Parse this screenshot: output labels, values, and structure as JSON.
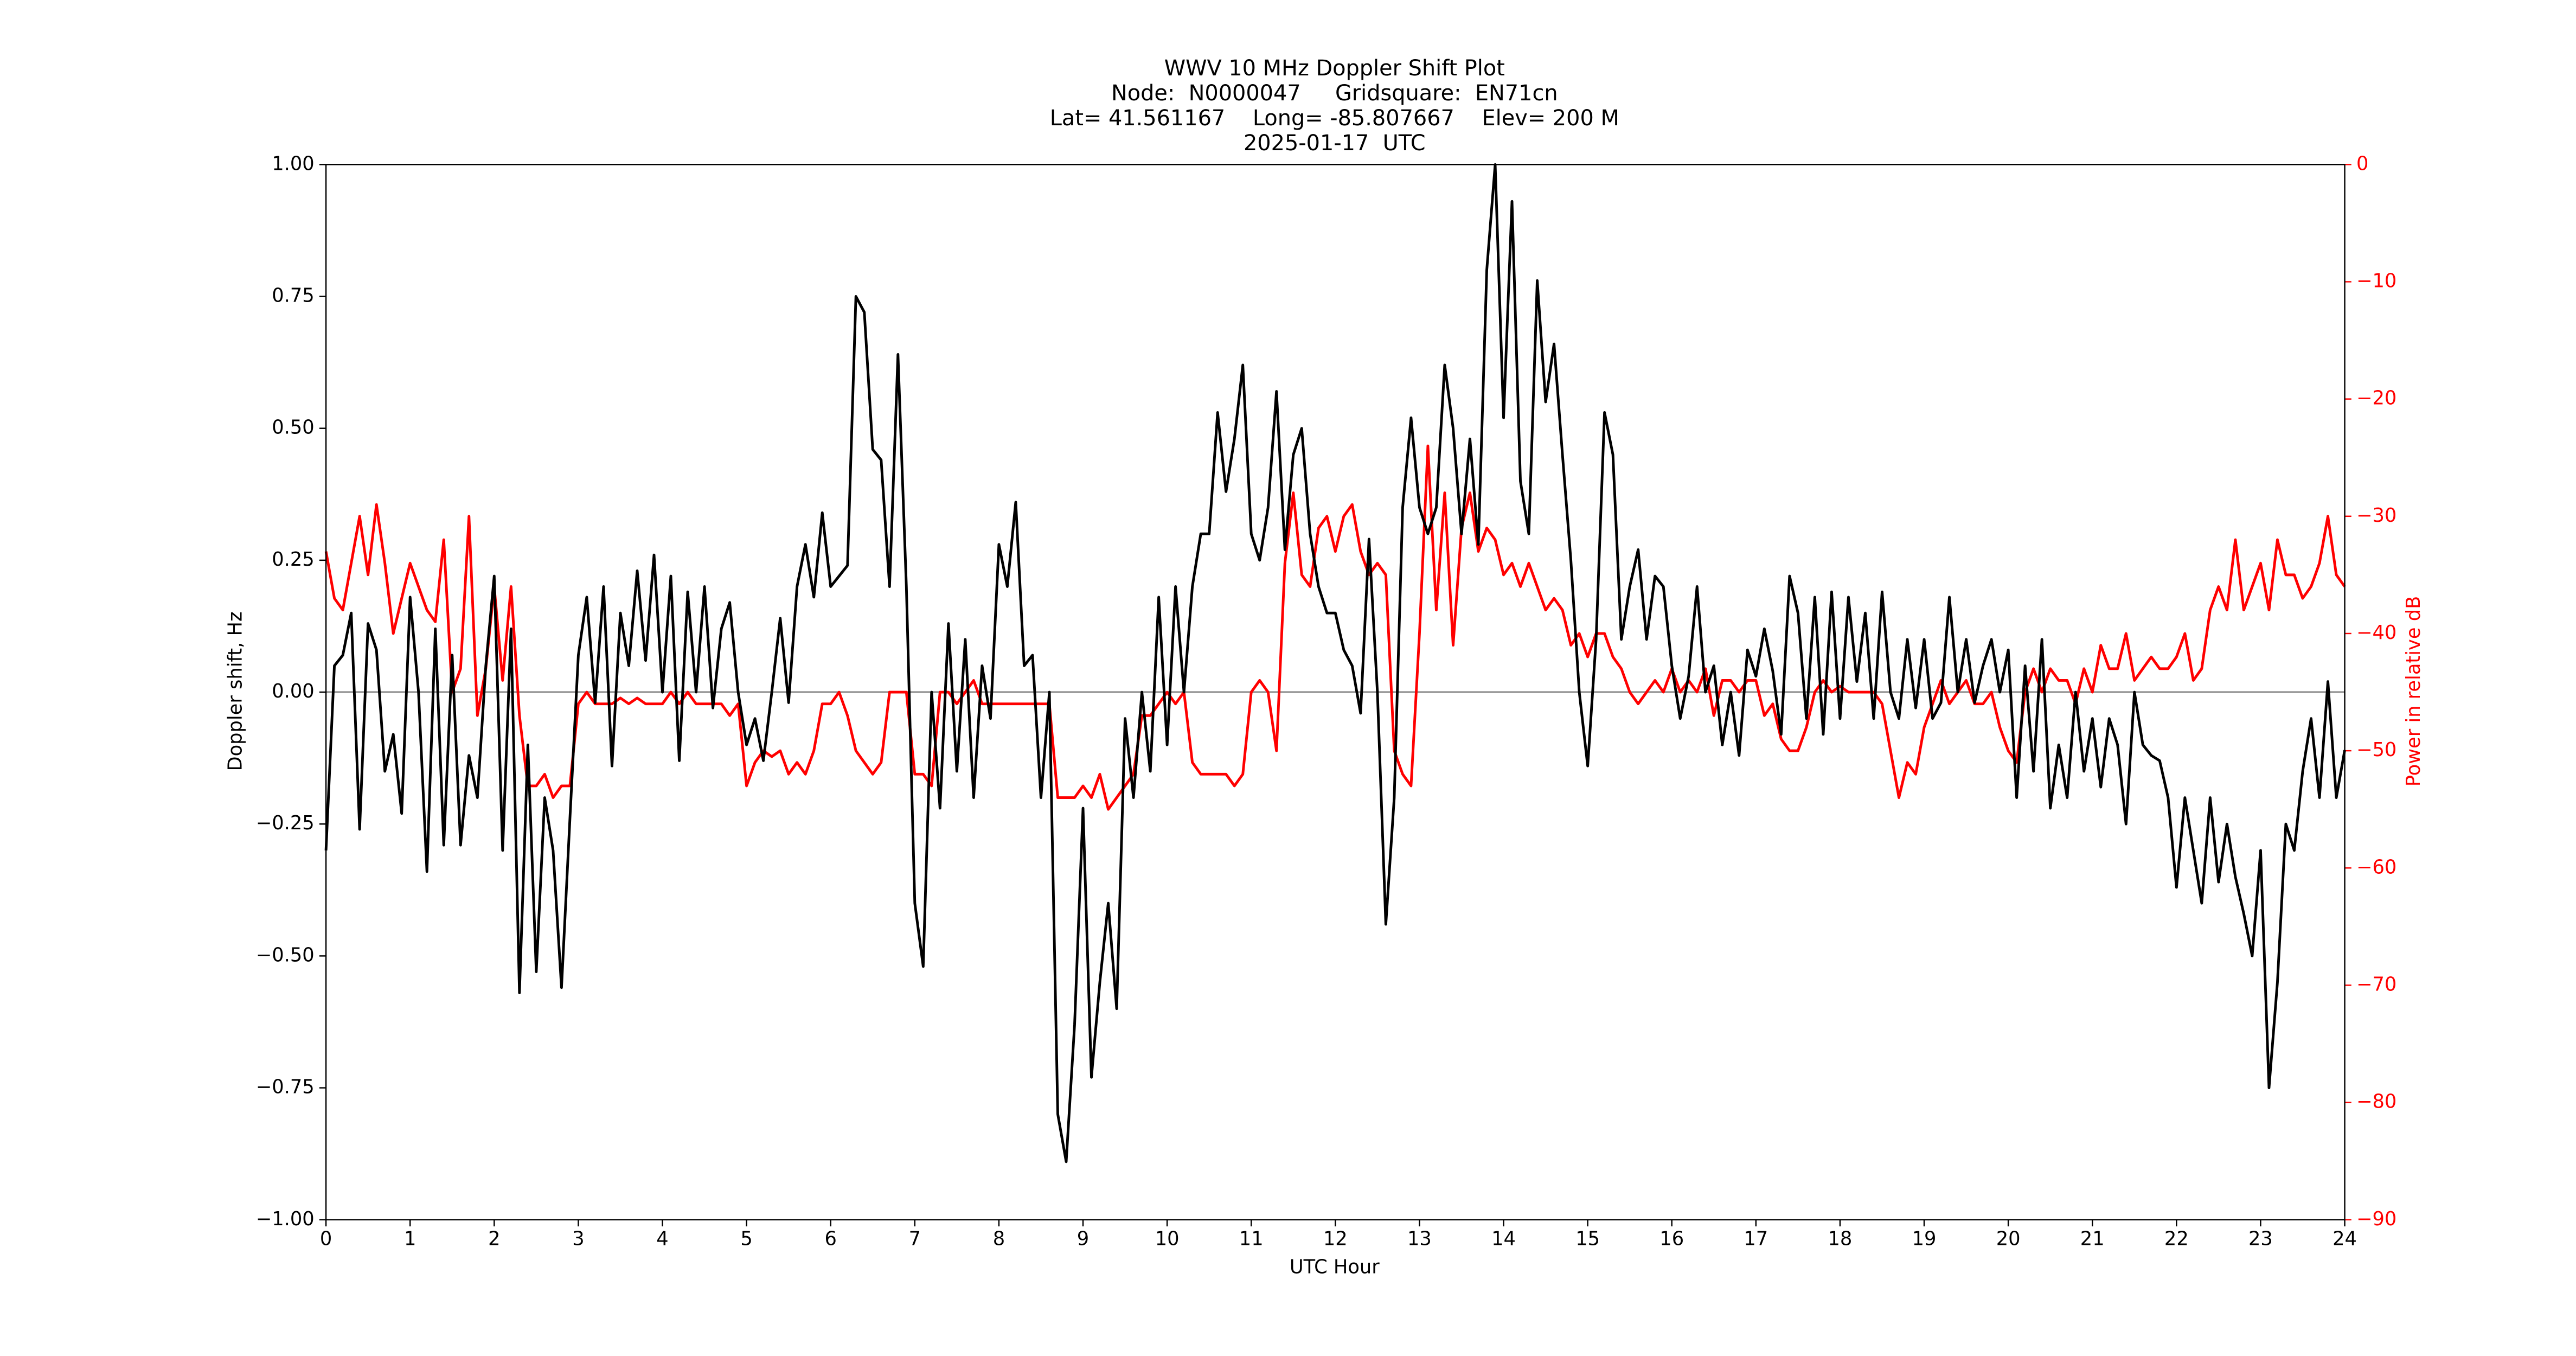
{
  "chart_data": {
    "type": "line",
    "title": "WWV 10 MHz Doppler Shift Plot",
    "subtitle": [
      "Node:  N0000047     Gridsquare:  EN71cn",
      "Lat= 41.561167    Long= -85.807667    Elev= 200 M",
      "2025-01-17  UTC"
    ],
    "xlabel": "UTC Hour",
    "ylabel": "Doppler shift, Hz",
    "y2label": "Power in relative dB",
    "y2color": "#ff0000",
    "xlim": [
      0,
      24
    ],
    "xticks": [
      0,
      1,
      2,
      3,
      4,
      5,
      6,
      7,
      8,
      9,
      10,
      11,
      12,
      13,
      14,
      15,
      16,
      17,
      18,
      19,
      20,
      21,
      22,
      23,
      24
    ],
    "ylim": [
      -1,
      1
    ],
    "yticks": [
      {
        "value": -1,
        "label": "−1.00"
      },
      {
        "value": -0.75,
        "label": "−0.75"
      },
      {
        "value": -0.5,
        "label": "−0.50"
      },
      {
        "value": -0.25,
        "label": "−0.25"
      },
      {
        "value": 0,
        "label": "0.00"
      },
      0.25,
      {
        "value": 0.5,
        "label": "0.50"
      },
      0.75,
      {
        "value": 1,
        "label": "1.00"
      }
    ],
    "y2lim": [
      -90,
      0
    ],
    "y2ticks": [
      {
        "value": -90,
        "label": "−90"
      },
      {
        "value": -80,
        "label": "−80"
      },
      {
        "value": -70,
        "label": "−70"
      },
      {
        "value": -60,
        "label": "−60"
      },
      {
        "value": -50,
        "label": "−50"
      },
      {
        "value": -40,
        "label": "−40"
      },
      {
        "value": -30,
        "label": "−30"
      },
      {
        "value": -20,
        "label": "−20"
      },
      {
        "value": -10,
        "label": "−10"
      },
      0
    ],
    "hline": {
      "value": 0,
      "color": "#999999"
    },
    "x": [
      0,
      0.1,
      0.2,
      0.3,
      0.4,
      0.5,
      0.6,
      0.7,
      0.8,
      0.9,
      1,
      1.1,
      1.2,
      1.3,
      1.4,
      1.5,
      1.6,
      1.7,
      1.8,
      1.9,
      2,
      2.1,
      2.2,
      2.3,
      2.4,
      2.5,
      2.6,
      2.7,
      2.8,
      2.9,
      3,
      3.1,
      3.2,
      3.3,
      3.4,
      3.5,
      3.6,
      3.7,
      3.8,
      3.9,
      4,
      4.1,
      4.2,
      4.3,
      4.4,
      4.5,
      4.6,
      4.7,
      4.8,
      4.9,
      5,
      5.1,
      5.2,
      5.3,
      5.4,
      5.5,
      5.6,
      5.7,
      5.8,
      5.9,
      6,
      6.1,
      6.2,
      6.3,
      6.4,
      6.5,
      6.6,
      6.7,
      6.8,
      6.9,
      7,
      7.1,
      7.2,
      7.3,
      7.4,
      7.5,
      7.6,
      7.7,
      7.8,
      7.9,
      8,
      8.1,
      8.2,
      8.3,
      8.4,
      8.5,
      8.6,
      8.7,
      8.8,
      8.9,
      9,
      9.1,
      9.2,
      9.3,
      9.4,
      9.5,
      9.6,
      9.7,
      9.8,
      9.9,
      10,
      10.1,
      10.2,
      10.3,
      10.4,
      10.5,
      10.6,
      10.7,
      10.8,
      10.9,
      11,
      11.1,
      11.2,
      11.3,
      11.4,
      11.5,
      11.6,
      11.7,
      11.8,
      11.9,
      12,
      12.1,
      12.2,
      12.3,
      12.4,
      12.5,
      12.6,
      12.7,
      12.8,
      12.9,
      13,
      13.1,
      13.2,
      13.3,
      13.4,
      13.5,
      13.6,
      13.7,
      13.8,
      13.9,
      14,
      14.1,
      14.2,
      14.3,
      14.4,
      14.5,
      14.6,
      14.7,
      14.8,
      14.9,
      15,
      15.1,
      15.2,
      15.3,
      15.4,
      15.5,
      15.6,
      15.7,
      15.8,
      15.9,
      16,
      16.1,
      16.2,
      16.3,
      16.4,
      16.5,
      16.6,
      16.7,
      16.8,
      16.9,
      17,
      17.1,
      17.2,
      17.3,
      17.4,
      17.5,
      17.6,
      17.7,
      17.8,
      17.9,
      18,
      18.1,
      18.2,
      18.3,
      18.4,
      18.5,
      18.6,
      18.7,
      18.8,
      18.9,
      19,
      19.1,
      19.2,
      19.3,
      19.4,
      19.5,
      19.6,
      19.7,
      19.8,
      19.9,
      20,
      20.1,
      20.2,
      20.3,
      20.4,
      20.5,
      20.6,
      20.7,
      20.8,
      20.9,
      21,
      21.1,
      21.2,
      21.3,
      21.4,
      21.5,
      21.6,
      21.7,
      21.8,
      21.9,
      22,
      22.1,
      22.2,
      22.3,
      22.4,
      22.5,
      22.6,
      22.7,
      22.8,
      22.9,
      23,
      23.1,
      23.2,
      23.3,
      23.4,
      23.5,
      23.6,
      23.7,
      23.8,
      23.9,
      24
    ],
    "series": [
      {
        "color": "#000000",
        "axis": "y",
        "values": [
          -0.3,
          0.05,
          0.07,
          0.15,
          -0.26,
          0.13,
          0.08,
          -0.15,
          -0.08,
          -0.23,
          0.18,
          0,
          -0.34,
          0.12,
          -0.29,
          0.07,
          -0.29,
          -0.12,
          -0.2,
          0.05,
          0.22,
          -0.3,
          0.12,
          -0.57,
          -0.1,
          -0.53,
          -0.2,
          -0.3,
          -0.56,
          -0.24,
          0.07,
          0.18,
          -0.02,
          0.2,
          -0.14,
          0.15,
          0.05,
          0.23,
          0.06,
          0.26,
          0,
          0.22,
          -0.13,
          0.19,
          0,
          0.2,
          -0.03,
          0.12,
          0.17,
          0,
          -0.1,
          -0.05,
          -0.13,
          0,
          0.14,
          -0.02,
          0.2,
          0.28,
          0.18,
          0.34,
          0.2,
          0.22,
          0.24,
          0.75,
          0.72,
          0.46,
          0.44,
          0.2,
          0.64,
          0.2,
          -0.4,
          -0.52,
          0,
          -0.22,
          0.13,
          -0.15,
          0.1,
          -0.2,
          0.05,
          -0.05,
          0.28,
          0.2,
          0.36,
          0.05,
          0.07,
          -0.2,
          0,
          -0.8,
          -0.89,
          -0.63,
          -0.22,
          -0.73,
          -0.55,
          -0.4,
          -0.6,
          -0.05,
          -0.2,
          0,
          -0.15,
          0.18,
          -0.1,
          0.2,
          0,
          0.2,
          0.3,
          0.3,
          0.53,
          0.38,
          0.48,
          0.62,
          0.3,
          0.25,
          0.35,
          0.57,
          0.27,
          0.45,
          0.5,
          0.3,
          0.2,
          0.15,
          0.15,
          0.08,
          0.05,
          -0.04,
          0.29,
          0,
          -0.44,
          -0.2,
          0.35,
          0.52,
          0.35,
          0.3,
          0.35,
          0.62,
          0.5,
          0.3,
          0.48,
          0.28,
          0.8,
          1.0,
          0.52,
          0.93,
          0.4,
          0.3,
          0.78,
          0.55,
          0.66,
          0.45,
          0.25,
          0,
          -0.14,
          0.1,
          0.53,
          0.45,
          0.1,
          0.2,
          0.27,
          0.1,
          0.22,
          0.2,
          0.05,
          -0.05,
          0.03,
          0.2,
          0,
          0.05,
          -0.1,
          0,
          -0.12,
          0.08,
          0.03,
          0.12,
          0.04,
          -0.08,
          0.22,
          0.15,
          -0.05,
          0.18,
          -0.08,
          0.19,
          -0.05,
          0.18,
          0.02,
          0.15,
          -0.05,
          0.19,
          0,
          -0.05,
          0.1,
          -0.03,
          0.1,
          -0.05,
          -0.02,
          0.18,
          0,
          0.1,
          -0.02,
          0.05,
          0.1,
          0,
          0.08,
          -0.2,
          0.05,
          -0.15,
          0.1,
          -0.22,
          -0.1,
          -0.2,
          0,
          -0.15,
          -0.05,
          -0.18,
          -0.05,
          -0.1,
          -0.25,
          0,
          -0.1,
          -0.12,
          -0.13,
          -0.2,
          -0.37,
          -0.2,
          -0.3,
          -0.4,
          -0.2,
          -0.36,
          -0.25,
          -0.35,
          -0.42,
          -0.5,
          -0.3,
          -0.75,
          -0.55,
          -0.25,
          -0.3,
          -0.15,
          -0.05,
          -0.2,
          0.02,
          -0.2,
          -0.11
        ]
      },
      {
        "color": "#ff0000",
        "axis": "y2",
        "values": [
          -33,
          -37,
          -38,
          -34,
          -30,
          -35,
          -29,
          -34,
          -40,
          -37,
          -34,
          -36,
          -38,
          -39,
          -32,
          -45,
          -43,
          -30,
          -47,
          -43,
          -36,
          -44,
          -36,
          -47,
          -53,
          -53,
          -52,
          -54,
          -53,
          -53,
          -46,
          -45,
          -46,
          -46,
          -46,
          -45.5,
          -46,
          -45.5,
          -46,
          -46,
          -46,
          -45,
          -46,
          -45,
          -46,
          -46,
          -46,
          -46,
          -47,
          -46,
          -53,
          -51,
          -50,
          -50.5,
          -50,
          -52,
          -51,
          -52,
          -50,
          -46,
          -46,
          -45,
          -47,
          -50,
          -51,
          -52,
          -51,
          -45,
          -45,
          -45,
          -52,
          -52,
          -53,
          -45,
          -45,
          -46,
          -45,
          -44,
          -46,
          -46,
          -46,
          -46,
          -46,
          -46,
          -46,
          -46,
          -46,
          -54,
          -54,
          -54,
          -53,
          -54,
          -52,
          -55,
          -54,
          -53,
          -52,
          -47,
          -47,
          -46,
          -45,
          -46,
          -45,
          -51,
          -52,
          -52,
          -52,
          -52,
          -53,
          -52,
          -45,
          -44,
          -45,
          -50,
          -34,
          -28,
          -35,
          -36,
          -31,
          -30,
          -33,
          -30,
          -29,
          -33,
          -35,
          -34,
          -35,
          -50,
          -52,
          -53,
          -40,
          -24,
          -38,
          -28,
          -41,
          -31,
          -28,
          -33,
          -31,
          -32,
          -35,
          -34,
          -36,
          -34,
          -36,
          -38,
          -37,
          -38,
          -41,
          -40,
          -42,
          -40,
          -40,
          -42,
          -43,
          -45,
          -46,
          -45,
          -44,
          -45,
          -43,
          -45,
          -44,
          -45,
          -43,
          -47,
          -44,
          -44,
          -45,
          -44,
          -44,
          -47,
          -46,
          -49,
          -50,
          -50,
          -48,
          -45,
          -44,
          -45,
          -44.5,
          -45,
          -45,
          -45,
          -45,
          -46,
          -50,
          -54,
          -51,
          -52,
          -48,
          -46,
          -44,
          -46,
          -45,
          -44,
          -46,
          -46,
          -45,
          -48,
          -50,
          -51,
          -45,
          -43,
          -45,
          -43,
          -44,
          -44,
          -46,
          -43,
          -45,
          -41,
          -43,
          -43,
          -40,
          -44,
          -43,
          -42,
          -43,
          -43,
          -42,
          -40,
          -44,
          -43,
          -38,
          -36,
          -38,
          -32,
          -38,
          -36,
          -34,
          -38,
          -32,
          -35,
          -35,
          -37,
          -36,
          -34,
          -30,
          -35,
          -36
        ]
      }
    ]
  }
}
